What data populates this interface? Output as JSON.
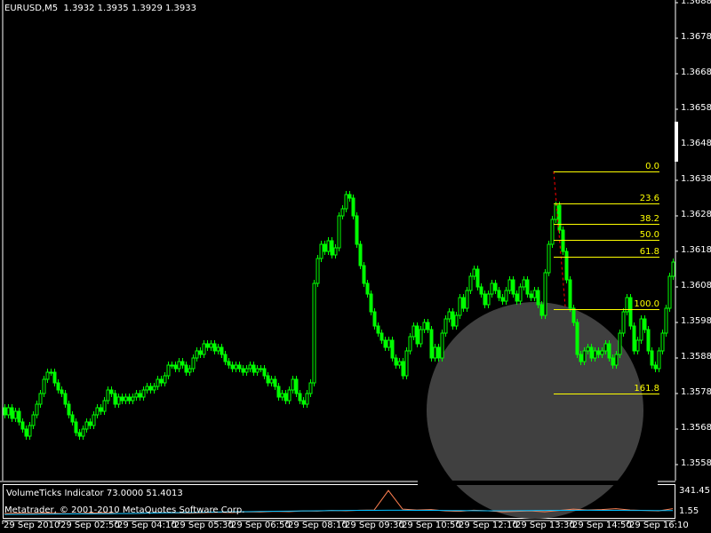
{
  "header": {
    "symbol_timeframe": "EURUSD,M5",
    "ohlc": "1.3932 1.3935 1.3929 1.3933"
  },
  "colors": {
    "background": "#000000",
    "candle": "#00ff00",
    "fib": "#ffff00",
    "trendline": "#ff0000",
    "overlay_circle": "#404040",
    "indicator_line_1": "#ff7f50",
    "indicator_line_2": "#00bfff"
  },
  "chart_data": {
    "type": "candlestick",
    "symbol": "EURUSD",
    "timeframe": "M5",
    "ylim": [
      1.3553,
      1.3688
    ],
    "y_ticks": [
      "1.3688",
      "1.3678",
      "1.3668",
      "1.3658",
      "1.3648",
      "1.3638",
      "1.3628",
      "1.3618",
      "1.3608",
      "1.3598",
      "1.3588",
      "1.3578",
      "1.3568",
      "1.3558"
    ],
    "x_ticks": [
      "29 Sep 2010",
      "29 Sep 02:50",
      "29 Sep 04:10",
      "29 Sep 05:30",
      "29 Sep 06:50",
      "29 Sep 08:10",
      "29 Sep 09:30",
      "29 Sep 10:50",
      "29 Sep 12:10",
      "29 Sep 13:30",
      "29 Sep 14:50",
      "29 Sep 16:10"
    ],
    "close": [
      1.3572,
      1.3574,
      1.3571,
      1.3573,
      1.357,
      1.3568,
      1.3566,
      1.3569,
      1.3572,
      1.3575,
      1.3578,
      1.3582,
      1.3584,
      1.3584,
      1.3581,
      1.3579,
      1.3578,
      1.3575,
      1.3572,
      1.357,
      1.3567,
      1.3566,
      1.3568,
      1.357,
      1.3569,
      1.3572,
      1.3574,
      1.3573,
      1.3576,
      1.3579,
      1.3578,
      1.3575,
      1.3577,
      1.3576,
      1.3577,
      1.3576,
      1.3577,
      1.3578,
      1.3577,
      1.3579,
      1.358,
      1.3579,
      1.358,
      1.3582,
      1.3581,
      1.3583,
      1.3586,
      1.3586,
      1.3585,
      1.3587,
      1.3586,
      1.3584,
      1.3585,
      1.3588,
      1.359,
      1.3589,
      1.3592,
      1.3591,
      1.3592,
      1.359,
      1.3591,
      1.3589,
      1.3587,
      1.3586,
      1.3585,
      1.3586,
      1.3585,
      1.3584,
      1.3585,
      1.3586,
      1.3584,
      1.3585,
      1.3585,
      1.3583,
      1.3581,
      1.3582,
      1.358,
      1.3577,
      1.3578,
      1.3576,
      1.3579,
      1.3582,
      1.3578,
      1.3576,
      1.3575,
      1.3578,
      1.3581,
      1.3609,
      1.3616,
      1.362,
      1.3618,
      1.3621,
      1.3617,
      1.3619,
      1.3628,
      1.363,
      1.3634,
      1.3633,
      1.3628,
      1.362,
      1.3614,
      1.3609,
      1.3606,
      1.3601,
      1.3597,
      1.3595,
      1.3593,
      1.3591,
      1.3593,
      1.3588,
      1.3586,
      1.3587,
      1.3583,
      1.359,
      1.3594,
      1.3597,
      1.3592,
      1.3596,
      1.3598,
      1.3596,
      1.3588,
      1.3591,
      1.3588,
      1.3595,
      1.3599,
      1.3601,
      1.3597,
      1.36,
      1.3605,
      1.3602,
      1.3607,
      1.3611,
      1.3613,
      1.3608,
      1.3606,
      1.3603,
      1.3606,
      1.3609,
      1.3607,
      1.3605,
      1.3604,
      1.3607,
      1.361,
      1.3606,
      1.3604,
      1.3608,
      1.361,
      1.3606,
      1.3605,
      1.3607,
      1.3603,
      1.36,
      1.3612,
      1.362,
      1.3627,
      1.3631,
      1.3624,
      1.3618,
      1.361,
      1.3602,
      1.3598,
      1.3589,
      1.3587,
      1.359,
      1.3591,
      1.3588,
      1.359,
      1.3589,
      1.359,
      1.3592,
      1.3588,
      1.3586,
      1.3589,
      1.3595,
      1.3601,
      1.3605,
      1.3597,
      1.359,
      1.3593,
      1.3599,
      1.3596,
      1.359,
      1.3586,
      1.3585,
      1.359,
      1.3595,
      1.3602,
      1.3611,
      1.3615
    ],
    "fibonacci": {
      "high": 1.36405,
      "low": 1.36018,
      "levels": [
        {
          "label": "0.0",
          "price": 1.36405
        },
        {
          "label": "23.6",
          "price": 1.36314
        },
        {
          "label": "38.2",
          "price": 1.36257
        },
        {
          "label": "50.0",
          "price": 1.36212
        },
        {
          "label": "61.8",
          "price": 1.36166
        },
        {
          "label": "100.0",
          "price": 1.36018
        },
        {
          "label": "161.8",
          "price": 1.3578
        }
      ]
    },
    "indicator": {
      "name": "VolumeTicks Indicator",
      "values_text": "73.0000 51.4013",
      "ylim": [
        1.55,
        341.45
      ],
      "y_ticks": [
        "341.45",
        "1.55"
      ],
      "series_1": [
        40,
        45,
        42,
        48,
        40,
        38,
        45,
        50,
        42,
        40,
        46,
        52,
        48,
        44,
        50,
        55,
        52,
        60,
        58,
        65,
        62,
        70,
        68,
        75,
        72,
        78,
        80,
        300,
        90,
        80,
        85,
        70,
        65,
        78,
        72,
        60,
        65,
        70,
        60,
        75,
        90,
        80,
        85,
        95,
        80,
        75,
        70,
        95
      ],
      "series_2": [
        30,
        32,
        33,
        34,
        35,
        36,
        37,
        38,
        40,
        42,
        45,
        48,
        50,
        52,
        55,
        58,
        60,
        62,
        64,
        66,
        68,
        70,
        72,
        74,
        75,
        76,
        77,
        78,
        78,
        77,
        76,
        75,
        74,
        73,
        72,
        72,
        73,
        74,
        75,
        76,
        77,
        78,
        77,
        76,
        75,
        75,
        74,
        74
      ]
    }
  },
  "watermark": "Metatrader, © 2001-2010 MetaQuotes Software Corp."
}
